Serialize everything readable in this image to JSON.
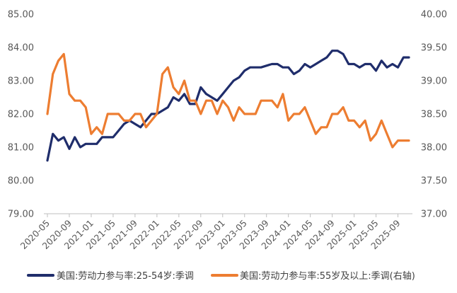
{
  "chart_data": {
    "type": "line",
    "title": "",
    "xlabel": "",
    "ylabel": "",
    "x_ticks": [
      "2020-05",
      "2020-09",
      "2021-01",
      "2021-05",
      "2021-09",
      "2022-01",
      "2022-05",
      "2022-09",
      "2023-01",
      "2023-05",
      "2023-09",
      "2024-01",
      "2024-05",
      "2024-09",
      "2025-01",
      "2025-05",
      "2025-09"
    ],
    "ylim_left": [
      79,
      85
    ],
    "yticks_left": [
      "79.00",
      "80.00",
      "81.00",
      "82.00",
      "83.00",
      "84.00",
      "85.00"
    ],
    "ylim_right": [
      37,
      40
    ],
    "yticks_right": [
      "37.00",
      "37.50",
      "38.00",
      "38.50",
      "39.00",
      "39.50",
      "40.00"
    ],
    "series": [
      {
        "name": "美国:劳动力参与率:25-54岁:季调",
        "axis": "left",
        "color": "#1f2d6b",
        "values": [
          80.6,
          81.4,
          81.2,
          81.3,
          80.95,
          81.3,
          81.0,
          81.1,
          81.1,
          81.1,
          81.3,
          81.3,
          81.3,
          81.5,
          81.7,
          81.8,
          81.7,
          81.6,
          81.8,
          82.0,
          82.0,
          82.1,
          82.2,
          82.5,
          82.4,
          82.6,
          82.3,
          82.3,
          82.8,
          82.6,
          82.5,
          82.4,
          82.6,
          82.8,
          83.0,
          83.1,
          83.3,
          83.4,
          83.4,
          83.4,
          83.45,
          83.5,
          83.5,
          83.4,
          83.4,
          83.2,
          83.3,
          83.5,
          83.4,
          83.5,
          83.6,
          83.7,
          83.9,
          83.9,
          83.8,
          83.5,
          83.5,
          83.4,
          83.5,
          83.5,
          83.3,
          83.6,
          83.4,
          83.5,
          83.4,
          83.7,
          83.7
        ]
      },
      {
        "name": "美国:劳动力参与率:55岁及以上:季调(右轴)",
        "axis": "right",
        "color": "#ed7d31",
        "values": [
          38.5,
          39.1,
          39.3,
          39.4,
          38.8,
          38.7,
          38.7,
          38.6,
          38.2,
          38.3,
          38.2,
          38.5,
          38.5,
          38.5,
          38.4,
          38.4,
          38.5,
          38.5,
          38.3,
          38.4,
          38.5,
          39.1,
          39.2,
          38.9,
          38.8,
          39.0,
          38.7,
          38.7,
          38.5,
          38.7,
          38.7,
          38.5,
          38.7,
          38.6,
          38.4,
          38.6,
          38.5,
          38.5,
          38.5,
          38.7,
          38.7,
          38.7,
          38.6,
          38.8,
          38.4,
          38.5,
          38.5,
          38.6,
          38.4,
          38.2,
          38.3,
          38.3,
          38.5,
          38.5,
          38.6,
          38.4,
          38.4,
          38.3,
          38.4,
          38.1,
          38.2,
          38.4,
          38.2,
          38.0,
          38.1,
          38.1,
          38.1
        ]
      }
    ],
    "legend_position": "bottom"
  }
}
